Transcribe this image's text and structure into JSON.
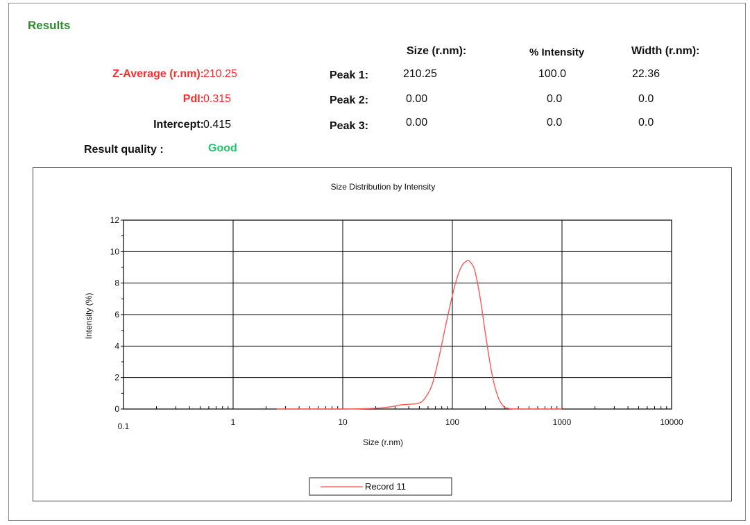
{
  "results": {
    "title": "Results",
    "z_average_label": "Z-Average (r.nm):",
    "z_average_value": "210.25",
    "pdi_label": "PdI:",
    "pdi_value": "0.315",
    "intercept_label": "Intercept:",
    "intercept_value": "0.415",
    "quality_label": "Result quality :",
    "quality_value": "Good"
  },
  "peaks": {
    "headers": {
      "size": "Size (r.nm):",
      "intensity": "% Intensity",
      "width": "Width (r.nm):"
    },
    "rows": [
      {
        "label": "Peak 1:",
        "size": "210.25",
        "intensity": "100.0",
        "width": "22.36"
      },
      {
        "label": "Peak 2:",
        "size": "0.00",
        "intensity": "0.0",
        "width": "0.0"
      },
      {
        "label": "Peak 3:",
        "size": "0.00",
        "intensity": "0.0",
        "width": "0.0"
      }
    ]
  },
  "colors": {
    "title_green": "#2e8b2e",
    "highlight_red": "#ff2b2b",
    "quality_green": "#23c46b",
    "series_red": "#ff5555"
  },
  "chart_data": {
    "type": "line",
    "title": "Size Distribution by Intensity",
    "xlabel": "Size (r.nm)",
    "ylabel": "Intensity (%)",
    "x_scale": "log",
    "xlim": [
      0.1,
      10000
    ],
    "ylim": [
      0,
      12
    ],
    "x_ticks": [
      "0.1",
      "1",
      "10",
      "100",
      "1000",
      "10000"
    ],
    "y_ticks": [
      "0",
      "2",
      "4",
      "6",
      "8",
      "10",
      "12"
    ],
    "grid": true,
    "legend": "bottom-center",
    "series": [
      {
        "name": "Record 11",
        "color": "#ff5555",
        "x": [
          2.5,
          10,
          20,
          28,
          33,
          40,
          48,
          55,
          65,
          75,
          90,
          105,
          120,
          135,
          145,
          160,
          180,
          200,
          230,
          260,
          290,
          320,
          400,
          1000
        ],
        "y": [
          0,
          0,
          0.05,
          0.15,
          0.25,
          0.3,
          0.35,
          0.6,
          1.5,
          3.2,
          5.8,
          7.8,
          9.0,
          9.4,
          9.35,
          8.8,
          7.0,
          4.8,
          2.2,
          0.8,
          0.2,
          0.05,
          0,
          0
        ]
      }
    ]
  }
}
